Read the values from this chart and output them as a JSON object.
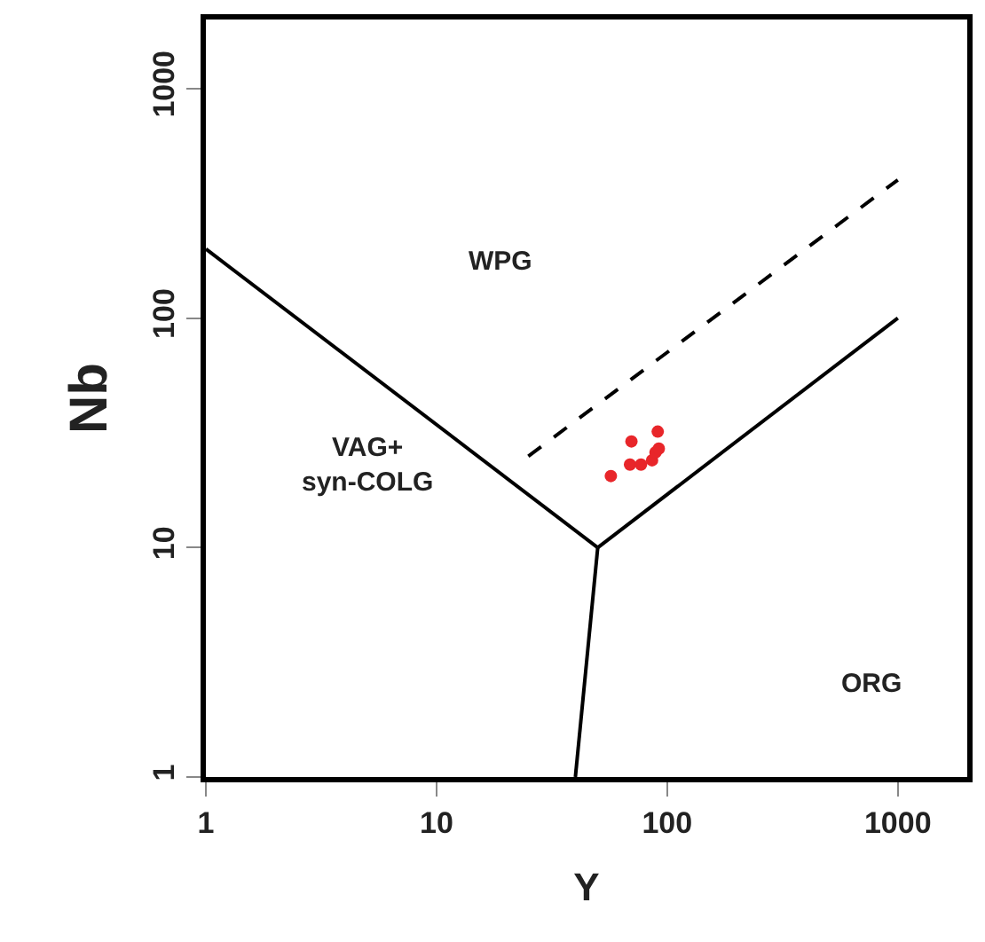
{
  "chart_data": {
    "type": "line",
    "xlabel": "Y",
    "ylabel": "Nb",
    "log": "xy",
    "xlim": [
      1,
      2000
    ],
    "ylim": [
      1,
      2000
    ],
    "xticks": [
      1,
      10,
      100,
      1000
    ],
    "yticks": [
      1,
      10,
      100,
      1000
    ],
    "series": [
      {
        "color": "#000000",
        "line_style": "solid",
        "x": [
          1,
          50
        ],
        "values": [
          200,
          10
        ]
      },
      {
        "color": "#000000",
        "line_style": "solid",
        "x": [
          50,
          1000
        ],
        "values": [
          10,
          100
        ]
      },
      {
        "color": "#000000",
        "line_style": "solid",
        "x": [
          50,
          40
        ],
        "values": [
          10,
          1
        ]
      },
      {
        "color": "#000000",
        "line_style": "dashed",
        "x": [
          25,
          1000
        ],
        "values": [
          25,
          400
        ]
      },
      {
        "type": "scatter",
        "marker": "circle",
        "color": "#e8262a",
        "x": [
          57,
          70,
          91,
          69,
          77,
          86,
          89,
          92
        ],
        "values": [
          20.5,
          29,
          32,
          23,
          23,
          24,
          26,
          27
        ]
      }
    ],
    "annotations": [
      "WPG",
      "VAG+\nsyn-COLG",
      "ORG"
    ]
  }
}
